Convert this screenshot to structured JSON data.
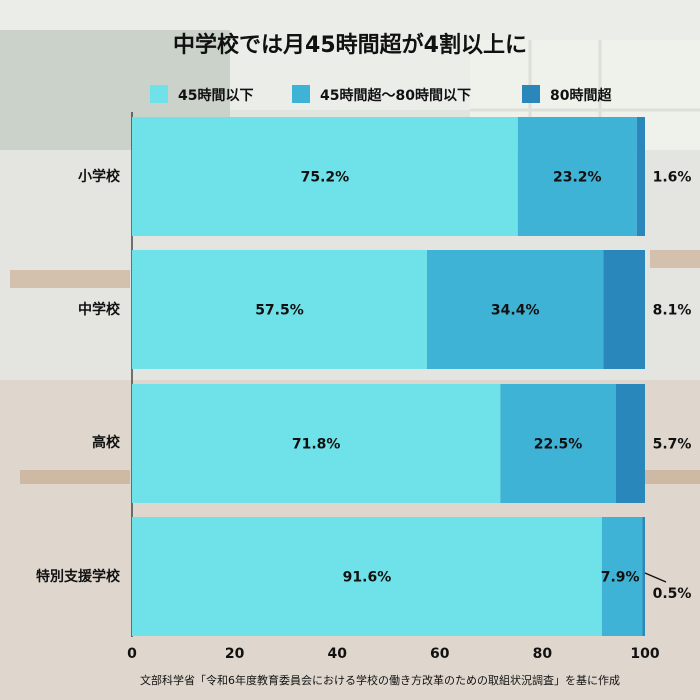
{
  "chart_data": {
    "type": "bar",
    "orientation": "horizontal",
    "stacked": true,
    "title": "中学校では月45時間超が4割以上に",
    "categories": [
      "小学校",
      "中学校",
      "高校",
      "特別支援学校"
    ],
    "series": [
      {
        "name": "45時間以下",
        "color": "#6ee2e8",
        "values": [
          75.2,
          57.5,
          71.8,
          91.6
        ],
        "labels": [
          "75.2%",
          "57.5%",
          "71.8%",
          "91.6%"
        ]
      },
      {
        "name": "45時間超～80時間以下",
        "color": "#3fb3d6",
        "values": [
          23.2,
          34.4,
          22.5,
          7.9
        ],
        "labels": [
          "23.2%",
          "34.4%",
          "22.5%",
          "7.9%"
        ]
      },
      {
        "name": "80時間超",
        "color": "#2a87bb",
        "values": [
          1.6,
          8.1,
          5.7,
          0.5
        ],
        "labels": [
          "1.6%",
          "8.1%",
          "5.7%",
          "0.5%"
        ]
      }
    ],
    "xlim": [
      0,
      100
    ],
    "xticks": [
      "0",
      "20",
      "40",
      "60",
      "80",
      "100"
    ],
    "legend_position": "top",
    "grid": false,
    "source": "文部科学省「令和6年度教育委員会における学校の働き方改革のための取組状況調査」を基に作成"
  }
}
